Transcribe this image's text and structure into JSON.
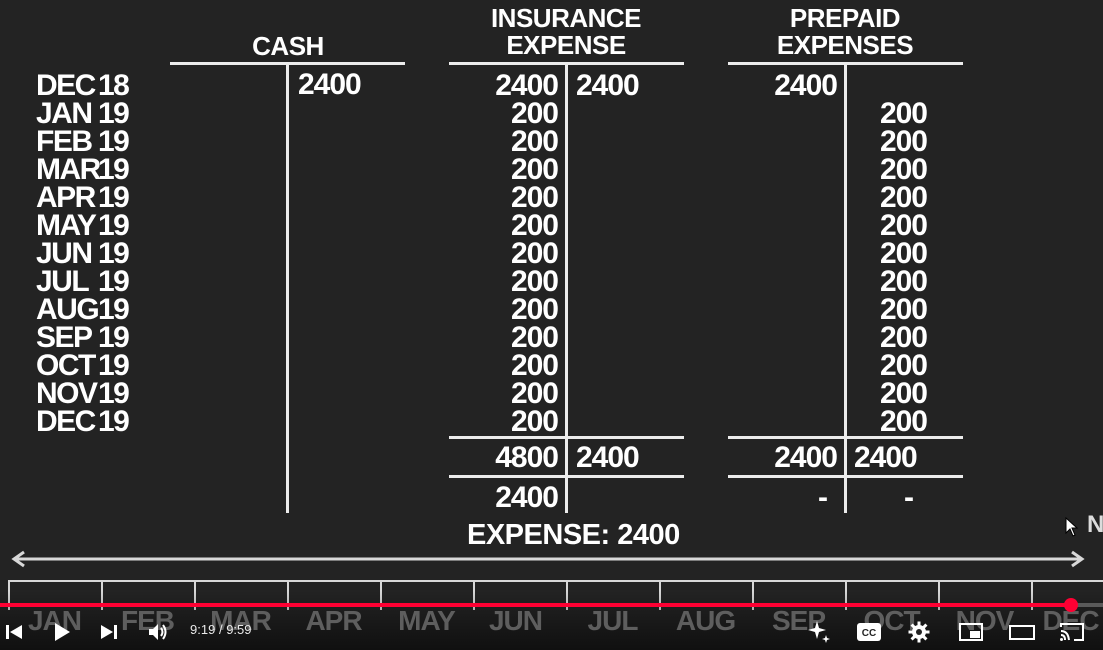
{
  "accounts": {
    "cash": {
      "title": "CASH",
      "credits": [
        "2400"
      ]
    },
    "insurance": {
      "title_line1": "INSURANCE",
      "title_line2": "EXPENSE",
      "debits": [
        "2400",
        "200",
        "200",
        "200",
        "200",
        "200",
        "200",
        "200",
        "200",
        "200",
        "200",
        "200",
        "200"
      ],
      "credits": [
        "2400"
      ],
      "total_debit": "4800",
      "total_credit": "2400",
      "balance": "2400"
    },
    "prepaid": {
      "title_line1": "PREPAID",
      "title_line2": "EXPENSES",
      "debits": [
        "2400"
      ],
      "credits": [
        "200",
        "200",
        "200",
        "200",
        "200",
        "200",
        "200",
        "200",
        "200",
        "200",
        "200",
        "200"
      ],
      "total_debit": "2400",
      "total_credit": "2400",
      "balance_debit": "-",
      "balance_credit": "-"
    }
  },
  "dates": [
    [
      "DEC",
      "18"
    ],
    [
      "JAN",
      "19"
    ],
    [
      "FEB",
      "19"
    ],
    [
      "MAR",
      "19"
    ],
    [
      "APR",
      "19"
    ],
    [
      "MAY",
      "19"
    ],
    [
      "JUN",
      "19"
    ],
    [
      "JUL",
      "19"
    ],
    [
      "AUG",
      "19"
    ],
    [
      "SEP",
      "19"
    ],
    [
      "OCT",
      "19"
    ],
    [
      "NOV",
      "19"
    ],
    [
      "DEC",
      "19"
    ]
  ],
  "expense_label": "EXPENSE: 2400",
  "stray_letter": "N",
  "timeline_months": [
    "JAN",
    "FEB",
    "MAR",
    "APR",
    "MAY",
    "JUN",
    "JUL",
    "AUG",
    "SEP",
    "OCT",
    "NOV",
    "DEC"
  ],
  "player": {
    "time_current": "9:19",
    "time_separator": "/",
    "time_total": "9:59",
    "progress_fraction": 0.971,
    "colors": {
      "progress": "#ff0033",
      "track": "#5a5a5a"
    }
  }
}
